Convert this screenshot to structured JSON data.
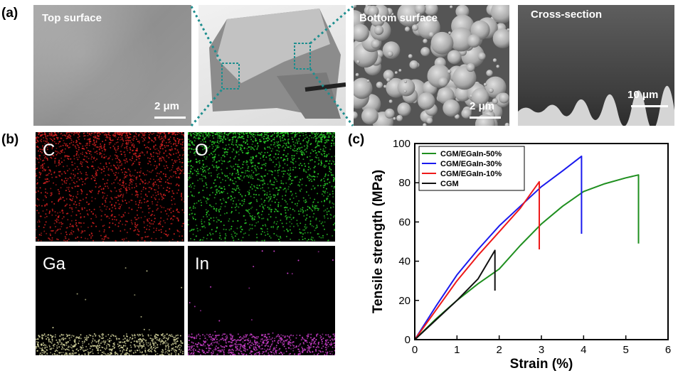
{
  "panel_a": {
    "label": "(a)",
    "top_surface": {
      "title": "Top surface",
      "scale": "2 μm"
    },
    "bottom_surface": {
      "title": "Bottom surface",
      "scale": "2 μm"
    },
    "cross_section": {
      "title": "Cross-section",
      "scale": "10 μm"
    }
  },
  "panel_b": {
    "label": "(b)",
    "maps": [
      {
        "element": "C",
        "color": "#d42020"
      },
      {
        "element": "O",
        "color": "#2bd32b"
      },
      {
        "element": "Ga",
        "color": "#d8d8a0"
      },
      {
        "element": "In",
        "color": "#d040d0"
      }
    ]
  },
  "panel_c": {
    "label": "(c)"
  },
  "chart_data": {
    "type": "line",
    "xlabel": "Strain (%)",
    "ylabel": "Tensile strength (MPa)",
    "xlim": [
      0,
      6
    ],
    "ylim": [
      0,
      100
    ],
    "xticks": [
      0,
      1,
      2,
      3,
      4,
      5,
      6
    ],
    "yticks": [
      0,
      20,
      40,
      60,
      80,
      100
    ],
    "legend_position": "top-left",
    "series": [
      {
        "name": "CGM/EGaIn-50%",
        "color": "#1f8f1f",
        "x": [
          0,
          0.5,
          1,
          1.5,
          2,
          2.5,
          3,
          3.5,
          4,
          4.5,
          5,
          5.3,
          5.3
        ],
        "y": [
          0,
          10.5,
          20,
          28.5,
          36,
          48,
          59,
          68,
          75.5,
          79.5,
          82.5,
          84,
          49
        ]
      },
      {
        "name": "CGM/EGaIn-30%",
        "color": "#1a1aee",
        "x": [
          0,
          0.5,
          1,
          1.5,
          2,
          2.5,
          3,
          3.5,
          3.95,
          3.95
        ],
        "y": [
          0,
          17,
          33,
          46,
          58,
          68,
          78,
          86,
          93.5,
          54
        ]
      },
      {
        "name": "CGM/EGaIn-10%",
        "color": "#ee1a1a",
        "x": [
          0,
          0.5,
          1,
          1.5,
          2,
          2.5,
          2.95,
          2.95
        ],
        "y": [
          0,
          15,
          30,
          43,
          55,
          67,
          80.5,
          46
        ]
      },
      {
        "name": "CGM",
        "color": "#111111",
        "x": [
          0,
          0.5,
          1,
          1.5,
          1.9,
          1.9
        ],
        "y": [
          0,
          10,
          20,
          31,
          45.5,
          25
        ]
      }
    ]
  }
}
